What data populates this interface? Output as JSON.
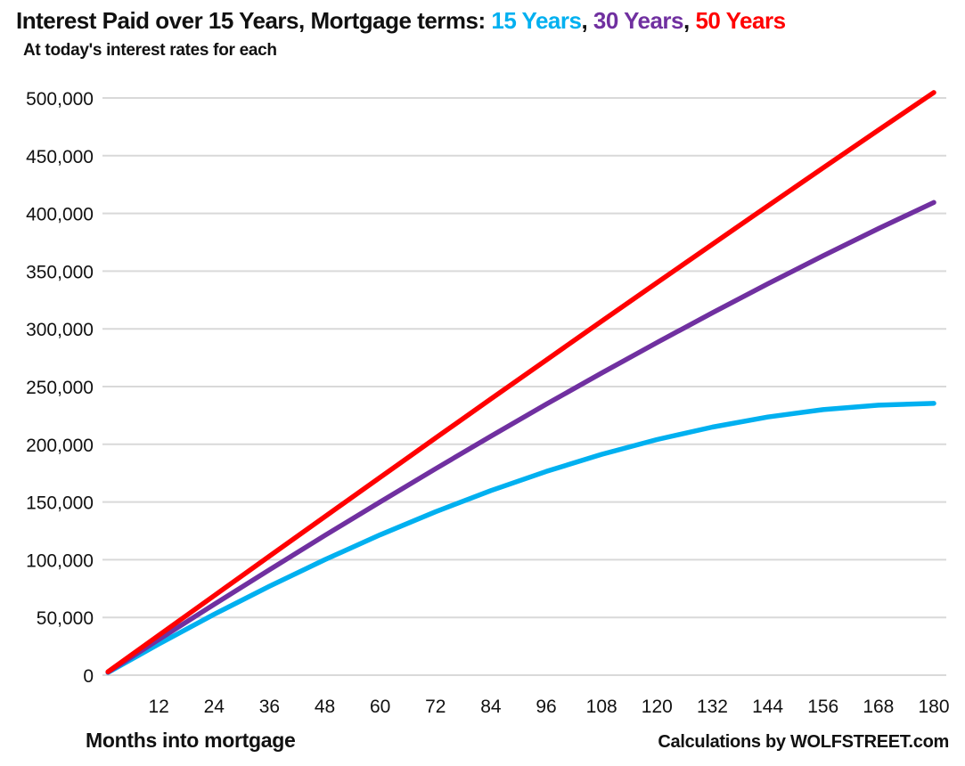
{
  "header": {
    "title_prefix": "Interest Paid over 15 Years, Mortgage terms: ",
    "separator": ", ",
    "legend": [
      {
        "label": "15 Years",
        "color": "#00B0F0"
      },
      {
        "label": "30 Years",
        "color": "#7030A0"
      },
      {
        "label": "50 Years",
        "color": "#FF0000"
      }
    ],
    "subtitle": "At today's interest rates for each"
  },
  "chart_data": {
    "type": "line",
    "title": "Interest Paid over 15 Years, Mortgage terms: 15 Years, 30 Years, 50 Years",
    "subtitle": "At today's interest rates for each",
    "xlabel": "Months into mortgage",
    "footer": "Calculations by WOLFSTREET.com",
    "x_label_unit": "months",
    "x": [
      1,
      12,
      24,
      36,
      48,
      60,
      72,
      84,
      96,
      108,
      120,
      132,
      144,
      156,
      168,
      180
    ],
    "xticks": [
      12,
      24,
      36,
      48,
      60,
      72,
      84,
      96,
      108,
      120,
      132,
      144,
      156,
      168,
      180
    ],
    "xlim": [
      0,
      180
    ],
    "ylim": [
      0,
      500000
    ],
    "ytick_step": 50000,
    "ytick_labels": [
      "0",
      "50,000",
      "100,000",
      "150,000",
      "200,000",
      "250,000",
      "300,000",
      "350,000",
      "400,000",
      "450,000",
      "500,000"
    ],
    "grid": "horizontal",
    "gridline_color": "#D9D9D9",
    "legend_position": "in-title",
    "series": [
      {
        "name": "15 Years",
        "color": "#00B0F0",
        "values": [
          2300,
          26900,
          52700,
          77000,
          100000,
          121600,
          141500,
          159900,
          176500,
          191300,
          204100,
          214900,
          223600,
          230000,
          233900,
          235400
        ]
      },
      {
        "name": "30 Years",
        "color": "#7030A0",
        "values": [
          2600,
          30800,
          61300,
          91300,
          121000,
          150100,
          178800,
          207000,
          234700,
          261700,
          288100,
          313900,
          339000,
          363300,
          386900,
          409500
        ]
      },
      {
        "name": "50 Years",
        "color": "#FF0000",
        "values": [
          2900,
          34500,
          68800,
          103100,
          137300,
          171400,
          205400,
          239300,
          273000,
          306600,
          340000,
          373300,
          406500,
          439400,
          472200,
          504700
        ]
      }
    ]
  }
}
